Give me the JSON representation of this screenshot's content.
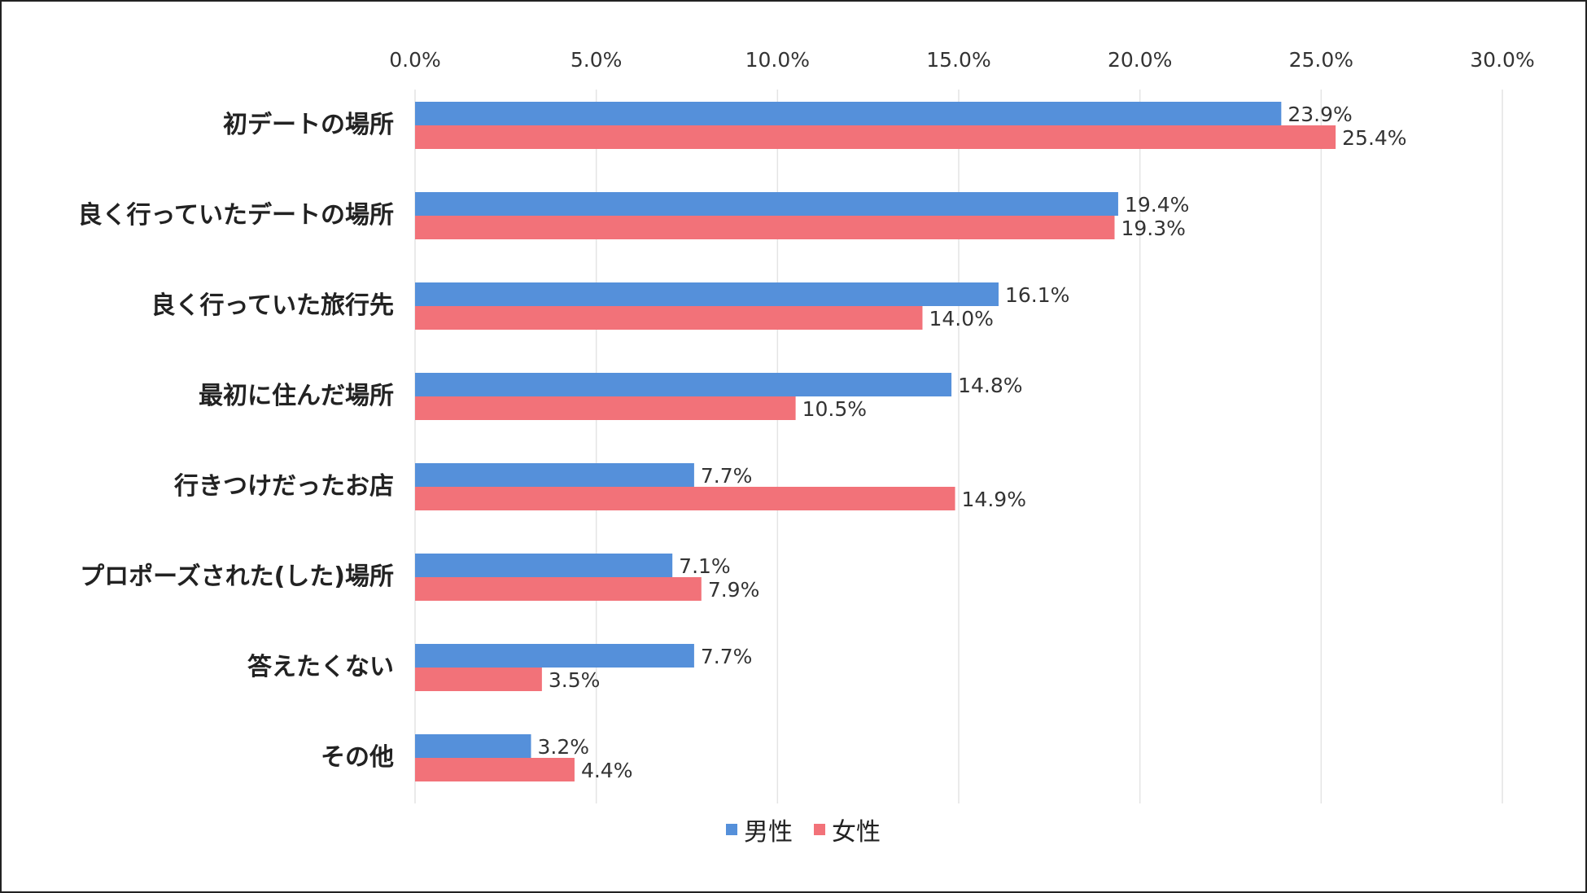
{
  "chart_data": {
    "type": "bar",
    "orientation": "horizontal",
    "title": "",
    "xlabel": "",
    "ylabel": "",
    "xlim": [
      0,
      30
    ],
    "xticks": [
      "0.0%",
      "5.0%",
      "10.0%",
      "15.0%",
      "20.0%",
      "25.0%",
      "30.0%"
    ],
    "grid": true,
    "legend_position": "bottom",
    "categories": [
      "初デートの場所",
      "良く行っていたデートの場所",
      "良く行っていた旅行先",
      "最初に住んだ場所",
      "行きつけだったお店",
      "プロポーズされた(した)場所",
      "答えたくない",
      "その他"
    ],
    "series": [
      {
        "name": "男性",
        "color": "#5590da",
        "values": [
          23.9,
          19.4,
          16.1,
          14.8,
          7.7,
          7.1,
          7.7,
          3.2
        ],
        "labels": [
          "23.9%",
          "19.4%",
          "16.1%",
          "14.8%",
          "7.7%",
          "7.1%",
          "7.7%",
          "3.2%"
        ]
      },
      {
        "name": "女性",
        "color": "#f27279",
        "values": [
          25.4,
          19.3,
          14.0,
          10.5,
          14.9,
          7.9,
          3.5,
          4.4
        ],
        "labels": [
          "25.4%",
          "19.3%",
          "14.0%",
          "10.5%",
          "14.9%",
          "7.9%",
          "3.5%",
          "4.4%"
        ]
      }
    ]
  }
}
